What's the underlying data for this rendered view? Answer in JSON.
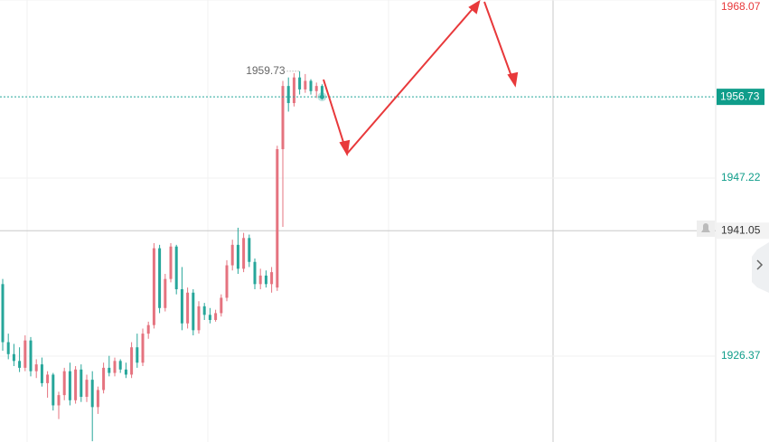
{
  "chart_data": {
    "type": "candlestick",
    "ylim": [
      1916.31,
      1968.07
    ],
    "yticks": [
      1926.37,
      1947.22,
      1968.07
    ],
    "grid": true,
    "up_color": "#e5737f",
    "down_color": "#26a69a",
    "last_price": 1956.73,
    "crosshair_price": 1941.05,
    "high_annotation": 1959.73,
    "candles": [
      [
        1934.8,
        1935.4,
        1927.0,
        1928.0
      ],
      [
        1928.0,
        1929.0,
        1926.0,
        1926.6
      ],
      [
        1926.6,
        1927.8,
        1925.2,
        1925.8
      ],
      [
        1925.8,
        1927.4,
        1924.5,
        1925.0
      ],
      [
        1925.0,
        1928.8,
        1924.6,
        1928.2
      ],
      [
        1928.2,
        1928.6,
        1924.0,
        1924.6
      ],
      [
        1924.6,
        1926.0,
        1923.8,
        1925.4
      ],
      [
        1925.4,
        1926.2,
        1922.8,
        1923.2
      ],
      [
        1923.2,
        1924.6,
        1921.5,
        1924.2
      ],
      [
        1924.2,
        1924.4,
        1920.0,
        1920.6
      ],
      [
        1920.6,
        1922.2,
        1919.0,
        1921.8
      ],
      [
        1921.8,
        1925.0,
        1921.2,
        1924.6
      ],
      [
        1924.6,
        1925.6,
        1920.6,
        1921.2
      ],
      [
        1921.2,
        1925.2,
        1920.8,
        1924.8
      ],
      [
        1924.8,
        1925.4,
        1921.0,
        1921.6
      ],
      [
        1921.6,
        1924.2,
        1921.0,
        1923.6
      ],
      [
        1923.6,
        1924.6,
        1916.4,
        1920.4
      ],
      [
        1920.4,
        1922.8,
        1919.6,
        1922.4
      ],
      [
        1922.4,
        1925.6,
        1922.0,
        1925.0
      ],
      [
        1925.0,
        1926.4,
        1924.0,
        1924.4
      ],
      [
        1924.4,
        1926.2,
        1924.0,
        1925.8
      ],
      [
        1925.8,
        1926.0,
        1924.4,
        1924.8
      ],
      [
        1924.8,
        1925.6,
        1923.8,
        1924.2
      ],
      [
        1924.2,
        1928.0,
        1923.8,
        1927.4
      ],
      [
        1927.4,
        1929.0,
        1925.0,
        1925.6
      ],
      [
        1925.6,
        1929.6,
        1925.2,
        1929.0
      ],
      [
        1929.0,
        1930.4,
        1928.4,
        1930.0
      ],
      [
        1930.0,
        1939.6,
        1929.6,
        1939.0
      ],
      [
        1939.0,
        1939.4,
        1931.4,
        1932.0
      ],
      [
        1932.0,
        1936.0,
        1931.6,
        1935.4
      ],
      [
        1935.4,
        1939.6,
        1935.0,
        1939.2
      ],
      [
        1939.2,
        1939.4,
        1933.6,
        1934.2
      ],
      [
        1934.2,
        1936.8,
        1929.4,
        1930.2
      ],
      [
        1930.2,
        1934.4,
        1929.6,
        1933.8
      ],
      [
        1933.8,
        1934.2,
        1928.8,
        1929.4
      ],
      [
        1929.4,
        1932.8,
        1929.0,
        1932.2
      ],
      [
        1932.2,
        1932.6,
        1930.6,
        1931.2
      ],
      [
        1931.2,
        1932.0,
        1930.2,
        1930.6
      ],
      [
        1930.6,
        1931.8,
        1930.4,
        1931.4
      ],
      [
        1931.4,
        1933.6,
        1931.0,
        1933.2
      ],
      [
        1933.2,
        1937.6,
        1932.8,
        1937.0
      ],
      [
        1937.0,
        1940.0,
        1936.4,
        1939.4
      ],
      [
        1939.4,
        1941.4,
        1936.0,
        1936.6
      ],
      [
        1936.6,
        1940.8,
        1936.2,
        1940.2
      ],
      [
        1940.2,
        1940.6,
        1936.8,
        1937.4
      ],
      [
        1937.4,
        1937.8,
        1934.2,
        1934.8
      ],
      [
        1934.8,
        1936.6,
        1934.2,
        1935.8
      ],
      [
        1935.8,
        1936.4,
        1934.4,
        1934.8
      ],
      [
        1934.8,
        1936.8,
        1933.8,
        1936.2
      ],
      [
        1934.4,
        1951.0,
        1934.0,
        1950.6
      ],
      [
        1950.6,
        1958.6,
        1941.5,
        1958.0
      ],
      [
        1958.0,
        1959.0,
        1955.0,
        1956.0
      ],
      [
        1956.0,
        1959.5,
        1955.6,
        1959.0
      ],
      [
        1959.0,
        1959.73,
        1957.0,
        1957.6
      ],
      [
        1957.6,
        1959.4,
        1957.2,
        1958.6
      ],
      [
        1958.6,
        1958.8,
        1957.0,
        1957.4
      ],
      [
        1957.4,
        1958.4,
        1956.6,
        1958.0
      ],
      [
        1958.0,
        1958.2,
        1956.4,
        1956.73
      ]
    ]
  }
}
